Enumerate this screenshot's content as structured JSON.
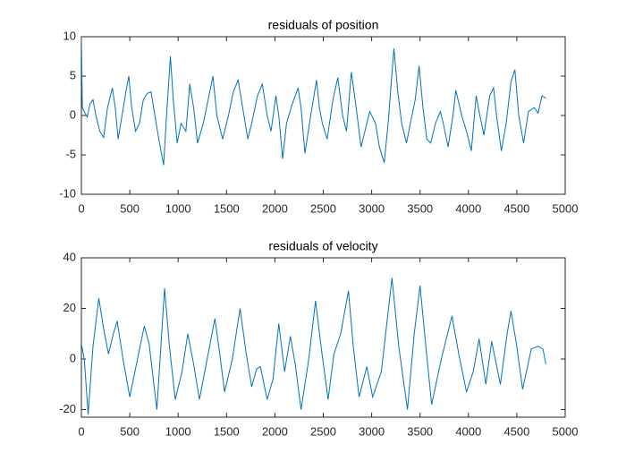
{
  "chart_data": [
    {
      "type": "line",
      "title": "residuals of position",
      "color": "#0072bd",
      "x": [
        0,
        10,
        30,
        60,
        90,
        120,
        150,
        190,
        230,
        270,
        320,
        350,
        380,
        420,
        460,
        490,
        520,
        560,
        600,
        640,
        680,
        720,
        760,
        800,
        850,
        880,
        920,
        950,
        990,
        1030,
        1080,
        1120,
        1160,
        1200,
        1260,
        1310,
        1360,
        1400,
        1460,
        1520,
        1570,
        1620,
        1680,
        1720,
        1760,
        1820,
        1870,
        1920,
        1960,
        2010,
        2040,
        2080,
        2120,
        2180,
        2240,
        2270,
        2310,
        2370,
        2430,
        2460,
        2490,
        2540,
        2600,
        2650,
        2700,
        2740,
        2790,
        2840,
        2890,
        2930,
        2980,
        3040,
        3080,
        3130,
        3170,
        3230,
        3270,
        3310,
        3360,
        3400,
        3450,
        3490,
        3530,
        3570,
        3610,
        3660,
        3710,
        3740,
        3790,
        3840,
        3870,
        3930,
        3980,
        4030,
        4080,
        4110,
        4160,
        4220,
        4260,
        4290,
        4340,
        4390,
        4440,
        4480,
        4520,
        4570,
        4620,
        4680,
        4720,
        4760,
        4800
      ],
      "values": [
        10,
        1,
        0.5,
        -0.2,
        1.5,
        2,
        0,
        -2,
        -2.8,
        1,
        3.5,
        1,
        -3,
        0,
        3,
        5,
        1,
        -2,
        -1,
        2,
        2.8,
        3,
        0,
        -3,
        -6.3,
        0,
        7.5,
        2,
        -3.5,
        -1,
        -2,
        4,
        1,
        -3.5,
        -1,
        2,
        5,
        0,
        -3,
        0,
        3,
        4.5,
        0,
        -3,
        -1,
        2.5,
        4,
        0,
        -2,
        2.5,
        0,
        -5.5,
        -1,
        1.5,
        3.5,
        1,
        -4.8,
        0,
        4.5,
        1,
        -1,
        -3,
        2,
        4.8,
        0,
        -2,
        5.5,
        1,
        -4,
        -2,
        0.5,
        -1,
        -4,
        -6,
        -1,
        8.5,
        3,
        -1,
        -3.5,
        -1,
        2,
        6.3,
        1,
        -3,
        -3.5,
        -1,
        0.5,
        -1,
        -4,
        0,
        3.2,
        0,
        -2,
        -4.5,
        2.5,
        0.5,
        -2.5,
        2.5,
        3.5,
        0,
        -4.5,
        -1,
        4.3,
        5.8,
        0,
        -3.5,
        0.5,
        1,
        0.3,
        2.5,
        2.2
      ],
      "xlim": [
        0,
        5000
      ],
      "xticks": [
        0,
        500,
        1000,
        1500,
        2000,
        2500,
        3000,
        3500,
        4000,
        4500,
        5000
      ],
      "ylim": [
        -10,
        10
      ],
      "yticks": [
        -10,
        -5,
        0,
        5,
        10
      ]
    },
    {
      "type": "line",
      "title": "residuals of velocity",
      "color": "#0072bd",
      "x": [
        0,
        30,
        70,
        120,
        180,
        230,
        280,
        330,
        370,
        430,
        500,
        580,
        650,
        700,
        780,
        860,
        910,
        970,
        1040,
        1100,
        1160,
        1220,
        1300,
        1380,
        1430,
        1480,
        1560,
        1640,
        1700,
        1760,
        1810,
        1850,
        1920,
        1980,
        2040,
        2100,
        2160,
        2210,
        2270,
        2350,
        2420,
        2480,
        2550,
        2610,
        2680,
        2760,
        2810,
        2870,
        2950,
        3010,
        3100,
        3210,
        3280,
        3370,
        3440,
        3500,
        3560,
        3620,
        3720,
        3830,
        3900,
        3980,
        4050,
        4110,
        4180,
        4240,
        4330,
        4400,
        4440,
        4500,
        4560,
        4650,
        4720,
        4770,
        4800
      ],
      "values": [
        6,
        0,
        -22,
        5,
        24,
        12,
        2,
        10,
        15,
        0,
        -15,
        0,
        13,
        6,
        -20,
        28,
        5,
        -16,
        -5,
        10,
        -2,
        -16,
        0,
        16,
        2,
        -13,
        0,
        20,
        3,
        -11,
        -4,
        -3,
        -16,
        -8,
        14,
        -5,
        9,
        -2,
        -20,
        0,
        23,
        4,
        -16,
        2,
        10,
        27,
        5,
        -15,
        -3,
        -15,
        -5,
        32,
        5,
        -20,
        10,
        29,
        5,
        -18,
        0,
        17,
        2,
        -13,
        -5,
        8,
        -10,
        7,
        -10,
        10,
        19,
        5,
        -12,
        4,
        5,
        4,
        -2
      ],
      "xlim": [
        0,
        5000
      ],
      "xticks": [
        0,
        500,
        1000,
        1500,
        2000,
        2500,
        3000,
        3500,
        4000,
        4500,
        5000
      ],
      "ylim": [
        -23,
        40
      ],
      "yticks": [
        -20,
        0,
        20,
        40
      ]
    }
  ]
}
